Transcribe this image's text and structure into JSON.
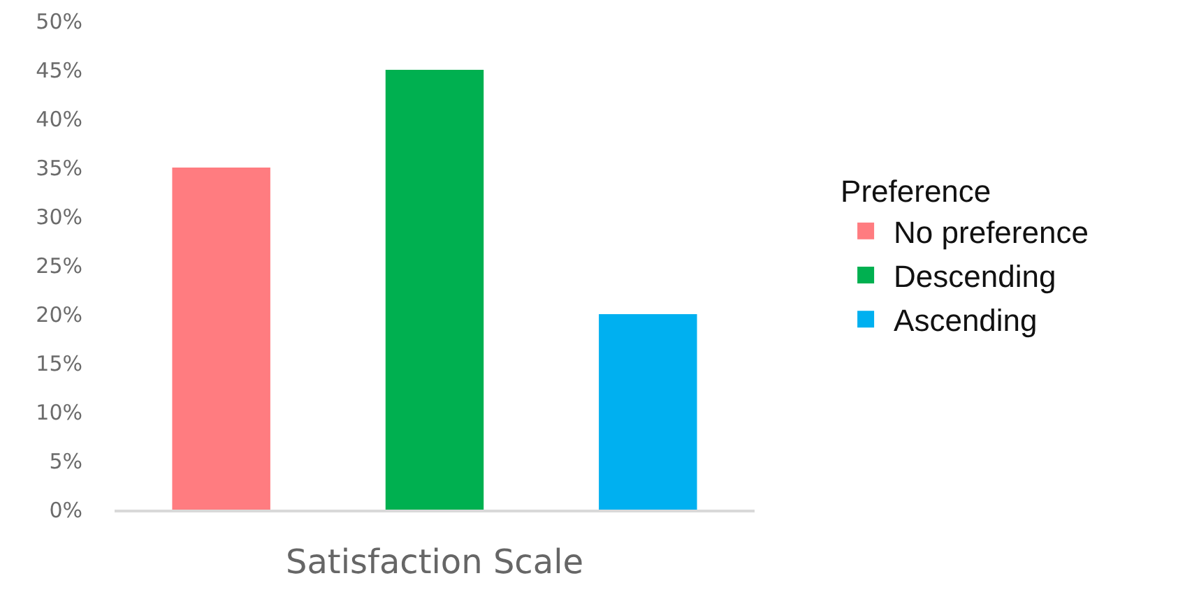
{
  "chart_data": {
    "type": "bar",
    "xlabel": "Satisfaction Scale",
    "legend_title": "Preference",
    "categories": [
      null,
      null,
      null
    ],
    "series": [
      {
        "name": "No preference",
        "color": "#ff7c80",
        "values": [
          35,
          null,
          null
        ]
      },
      {
        "name": "Descending",
        "color": "#00b050",
        "values": [
          null,
          45,
          null
        ]
      },
      {
        "name": "Ascending",
        "color": "#00b0f0",
        "values": [
          null,
          null,
          20
        ]
      }
    ],
    "ylim": [
      0,
      50
    ],
    "yticks": [
      {
        "value": 0,
        "label": "0%"
      },
      {
        "value": 5,
        "label": "5%"
      },
      {
        "value": 10,
        "label": "10%"
      },
      {
        "value": 15,
        "label": "15%"
      },
      {
        "value": 20,
        "label": "20%"
      },
      {
        "value": 25,
        "label": "25%"
      },
      {
        "value": 30,
        "label": "30%"
      },
      {
        "value": 35,
        "label": "35%"
      },
      {
        "value": 40,
        "label": "40%"
      },
      {
        "value": 45,
        "label": "45%"
      },
      {
        "value": 50,
        "label": "50%"
      }
    ],
    "legend": "right",
    "tick_labels": "y"
  }
}
